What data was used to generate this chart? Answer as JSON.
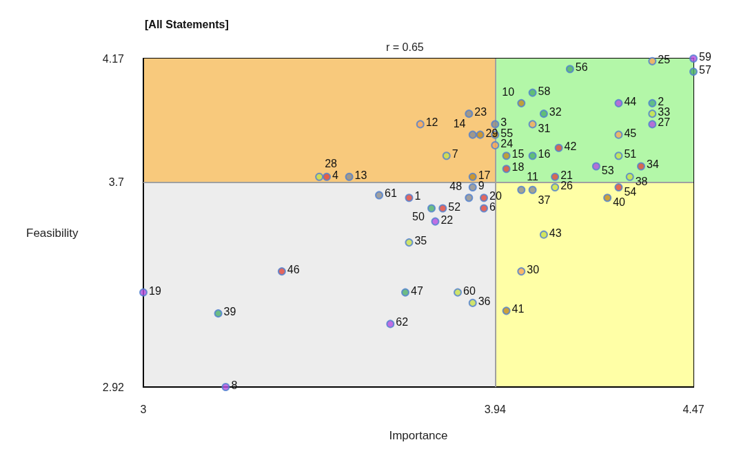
{
  "chart_data": {
    "type": "scatter",
    "title": "[All Statements]",
    "xlabel": "Importance",
    "ylabel": "Feasibility",
    "annotations": [
      "r = 0.65",
      {
        "text": "1",
        "x": 3.71,
        "y": 3.64
      },
      {
        "text": "2",
        "x": 4.36,
        "y": 4.0
      },
      {
        "text": "3",
        "x": 3.94,
        "y": 3.92
      },
      {
        "text": "4",
        "x": 3.49,
        "y": 3.72
      },
      {
        "text": "6",
        "x": 3.91,
        "y": 3.6
      },
      {
        "text": "7",
        "x": 3.81,
        "y": 3.8
      },
      {
        "text": "8",
        "x": 3.22,
        "y": 2.92
      },
      {
        "text": "9",
        "x": 3.88,
        "y": 3.68
      },
      {
        "text": "10",
        "x": 4.01,
        "y": 4.0
      },
      {
        "text": "11",
        "x": 4.01,
        "y": 3.67
      },
      {
        "text": "12",
        "x": 3.74,
        "y": 3.92
      },
      {
        "text": "13",
        "x": 3.55,
        "y": 3.72
      },
      {
        "text": "14",
        "x": 3.88,
        "y": 3.88
      },
      {
        "text": "15",
        "x": 3.97,
        "y": 3.8
      },
      {
        "text": "16",
        "x": 4.04,
        "y": 3.8
      },
      {
        "text": "17",
        "x": 3.88,
        "y": 3.72
      },
      {
        "text": "18",
        "x": 3.97,
        "y": 3.75
      },
      {
        "text": "19",
        "x": 3.0,
        "y": 3.28
      },
      {
        "text": "20",
        "x": 3.91,
        "y": 3.64
      },
      {
        "text": "21",
        "x": 4.1,
        "y": 3.72
      },
      {
        "text": "22",
        "x": 3.78,
        "y": 3.55
      },
      {
        "text": "23",
        "x": 3.87,
        "y": 3.96
      },
      {
        "text": "24",
        "x": 3.94,
        "y": 3.84
      },
      {
        "text": "25",
        "x": 4.36,
        "y": 4.16
      },
      {
        "text": "26",
        "x": 4.1,
        "y": 3.68
      },
      {
        "text": "27",
        "x": 4.36,
        "y": 3.92
      },
      {
        "text": "28",
        "x": 3.47,
        "y": 3.72
      },
      {
        "text": "29",
        "x": 3.9,
        "y": 3.88
      },
      {
        "text": "30",
        "x": 4.01,
        "y": 3.36
      },
      {
        "text": "31",
        "x": 4.04,
        "y": 3.92
      },
      {
        "text": "32",
        "x": 4.07,
        "y": 3.96
      },
      {
        "text": "33",
        "x": 4.36,
        "y": 3.96
      },
      {
        "text": "34",
        "x": 4.33,
        "y": 3.76
      },
      {
        "text": "35",
        "x": 3.71,
        "y": 3.47
      },
      {
        "text": "36",
        "x": 3.88,
        "y": 3.24
      },
      {
        "text": "37",
        "x": 4.04,
        "y": 3.67
      },
      {
        "text": "38",
        "x": 4.3,
        "y": 3.72
      },
      {
        "text": "39",
        "x": 3.2,
        "y": 3.2
      },
      {
        "text": "40",
        "x": 4.24,
        "y": 3.64
      },
      {
        "text": "41",
        "x": 3.97,
        "y": 3.21
      },
      {
        "text": "42",
        "x": 4.11,
        "y": 3.83
      },
      {
        "text": "43",
        "x": 4.07,
        "y": 3.5
      },
      {
        "text": "44",
        "x": 4.27,
        "y": 4.0
      },
      {
        "text": "45",
        "x": 4.27,
        "y": 3.88
      },
      {
        "text": "46",
        "x": 3.37,
        "y": 3.36
      },
      {
        "text": "47",
        "x": 3.7,
        "y": 3.28
      },
      {
        "text": "48",
        "x": 3.87,
        "y": 3.64
      },
      {
        "text": "50",
        "x": 3.77,
        "y": 3.6
      },
      {
        "text": "51",
        "x": 4.27,
        "y": 3.8
      },
      {
        "text": "52",
        "x": 3.8,
        "y": 3.6
      },
      {
        "text": "53",
        "x": 4.21,
        "y": 3.76
      },
      {
        "text": "54",
        "x": 4.27,
        "y": 3.68
      },
      {
        "text": "55",
        "x": 3.94,
        "y": 3.88
      },
      {
        "text": "56",
        "x": 4.14,
        "y": 4.13
      },
      {
        "text": "57",
        "x": 4.47,
        "y": 4.12
      },
      {
        "text": "58",
        "x": 4.04,
        "y": 4.04
      },
      {
        "text": "59",
        "x": 4.47,
        "y": 4.17
      },
      {
        "text": "60",
        "x": 3.84,
        "y": 3.28
      },
      {
        "text": "61",
        "x": 3.63,
        "y": 3.65
      },
      {
        "text": "62",
        "x": 3.66,
        "y": 3.16
      }
    ],
    "xlim": [
      3,
      4.47
    ],
    "xticks": [
      3,
      3.94,
      4.47
    ],
    "ylim": [
      2.92,
      4.17
    ],
    "yticks": [
      2.92,
      3.7,
      4.17
    ],
    "grid": false,
    "marker": "circle",
    "ref_lines": [
      {
        "axis": "x",
        "value": 3.94,
        "color": "#a0a0a0"
      },
      {
        "axis": "y",
        "value": 3.7,
        "color": "#a0a0a0"
      }
    ],
    "bands": [
      {
        "axis": "x",
        "from": 3,
        "to": 3.94,
        "color": "#ededed"
      },
      {
        "axis": "x",
        "from": 3.94,
        "to": 4.47,
        "color": "#ffffa6"
      },
      {
        "axis": "y",
        "from": 3.7,
        "to": 4.17,
        "color": "#f8c97c"
      },
      {
        "axis": "y",
        "from": 3.7,
        "to": 4.17,
        "color": "#b3f7a8"
      }
    ],
    "series": [
      {
        "x": [
          3.71,
          4.36,
          3.94,
          3.49,
          3.91,
          3.81,
          3.22,
          3.88,
          4.01,
          4.01,
          3.74,
          3.55,
          3.88,
          3.97,
          4.04,
          3.88,
          3.97,
          3.0,
          3.91,
          4.1,
          3.78,
          3.87,
          3.94,
          4.36,
          4.1,
          4.36,
          3.47,
          3.9,
          4.01,
          4.04,
          4.07,
          4.36,
          4.33,
          3.71,
          3.88,
          4.04,
          4.3,
          3.2,
          4.24,
          3.97,
          4.11,
          4.07,
          4.27,
          4.27,
          3.37,
          3.7,
          3.87,
          3.77,
          4.27,
          3.8,
          4.21,
          4.27,
          3.94,
          4.14,
          4.47,
          4.04,
          4.47,
          3.84,
          3.63,
          3.66
        ],
        "values": [
          3.64,
          4.0,
          3.92,
          3.72,
          3.6,
          3.8,
          2.92,
          3.68,
          4.0,
          3.67,
          3.92,
          3.72,
          3.88,
          3.8,
          3.8,
          3.72,
          3.75,
          3.28,
          3.64,
          3.72,
          3.55,
          3.96,
          3.84,
          4.16,
          3.68,
          3.92,
          3.72,
          3.88,
          3.36,
          3.92,
          3.96,
          3.96,
          3.76,
          3.47,
          3.24,
          3.67,
          3.72,
          3.2,
          3.64,
          3.21,
          3.83,
          3.5,
          4.0,
          3.88,
          3.36,
          3.28,
          3.64,
          3.6,
          3.8,
          3.6,
          3.76,
          3.68,
          3.88,
          4.13,
          4.12,
          4.04,
          4.17,
          3.28,
          3.65,
          3.16
        ],
        "colors": [
          "#e0453a",
          "#4caf80",
          "#8c8c8c",
          "#e0453a",
          "#e0453a",
          "#c8e04a",
          "#b44fe0",
          "#8c8c8c",
          "#c08a1e",
          "#8c8c8c",
          "#f7a65a",
          "#8c8c8c",
          "#8c8c8c",
          "#c08a1e",
          "#4caf6a",
          "#c08a1e",
          "#e0453a",
          "#b44fe0",
          "#e0453a",
          "#e0453a",
          "#b44fe0",
          "#8c8c8c",
          "#f7a65a",
          "#f7a65a",
          "#c8e04a",
          "#b44fe0",
          "#c8e04a",
          "#c08a1e",
          "#f7a65a",
          "#f7a65a",
          "#4caf6a",
          "#c8e04a",
          "#e0453a",
          "#c8e04a",
          "#c8e04a",
          "#8c8c8c",
          "#c8e04a",
          "#4caf6a",
          "#c08a1e",
          "#c08a1e",
          "#e0453a",
          "#c8e04a",
          "#b44fe0",
          "#f7a65a",
          "#e0453a",
          "#4caf6a",
          "#8c8c8c",
          "#4caf6a",
          "#c8e04a",
          "#e0453a",
          "#b44fe0",
          "#e0453a",
          "#c08a1e",
          "#4caf6a",
          "#4caf6a",
          "#4caf6a",
          "#b44fe0",
          "#c8e04a",
          "#8c8c8c",
          "#b44fe0"
        ]
      }
    ]
  }
}
